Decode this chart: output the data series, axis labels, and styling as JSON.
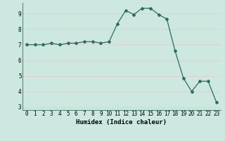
{
  "x": [
    0,
    1,
    2,
    3,
    4,
    5,
    6,
    7,
    8,
    9,
    10,
    11,
    12,
    13,
    14,
    15,
    16,
    17,
    18,
    19,
    20,
    21,
    22,
    23
  ],
  "y": [
    7.0,
    7.0,
    7.0,
    7.1,
    7.0,
    7.1,
    7.1,
    7.2,
    7.2,
    7.1,
    7.2,
    8.35,
    9.2,
    8.95,
    9.35,
    9.35,
    8.95,
    8.65,
    6.6,
    4.85,
    4.0,
    4.65,
    4.65,
    3.3
  ],
  "xlabel": "Humidex (Indice chaleur)",
  "xlim": [
    -0.5,
    23.5
  ],
  "ylim": [
    2.8,
    9.7
  ],
  "yticks": [
    3,
    4,
    5,
    6,
    7,
    8,
    9
  ],
  "xticks": [
    0,
    1,
    2,
    3,
    4,
    5,
    6,
    7,
    8,
    9,
    10,
    11,
    12,
    13,
    14,
    15,
    16,
    17,
    18,
    19,
    20,
    21,
    22,
    23
  ],
  "line_color": "#2e6b5e",
  "marker": "D",
  "marker_size": 2.0,
  "bg_color": "#cce8e0",
  "grid_color_major": "#e8c8c8",
  "grid_color_minor": "#dde8e4",
  "xlabel_fontsize": 6.5,
  "tick_fontsize": 5.5
}
